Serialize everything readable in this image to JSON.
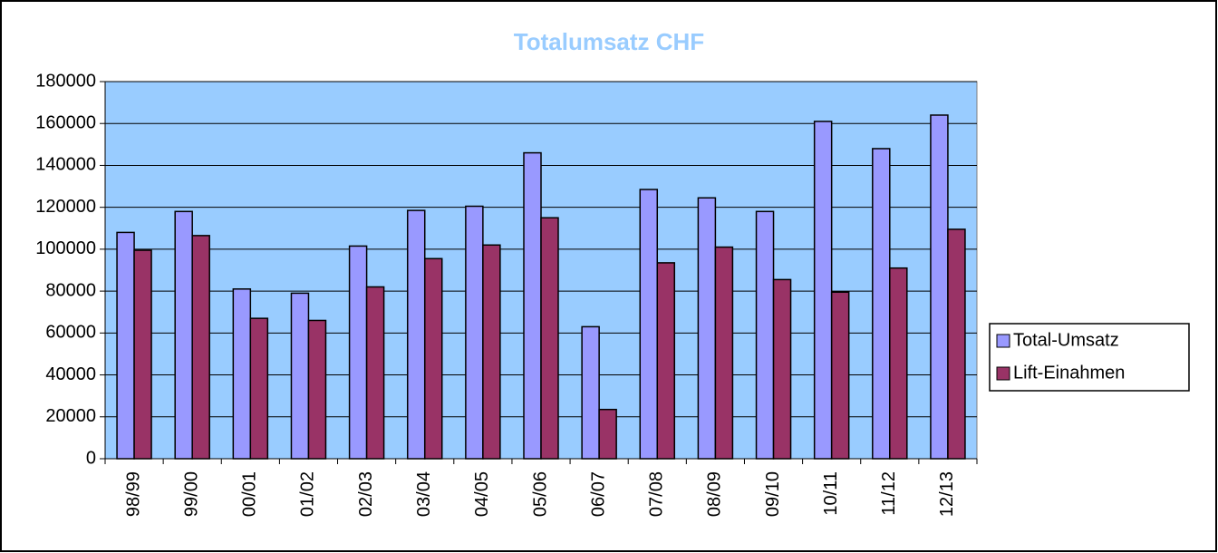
{
  "chart_data": {
    "type": "bar",
    "title": "Totalumsatz CHF",
    "categories": [
      "98/99",
      "99/00",
      "00/01",
      "01/02",
      "02/03",
      "03/04",
      "04/05",
      "05/06",
      "06/07",
      "07/08",
      "08/09",
      "09/10",
      "10/11",
      "11/12",
      "12/13"
    ],
    "series": [
      {
        "name": "Total-Umsatz",
        "color": "#9999ff",
        "values": [
          108000,
          118000,
          81000,
          79000,
          101500,
          118500,
          120500,
          146000,
          63000,
          128500,
          124500,
          118000,
          161000,
          148000,
          164000
        ]
      },
      {
        "name": "Lift-Einahmen",
        "color": "#993366",
        "values": [
          99500,
          106500,
          67000,
          66000,
          82000,
          95500,
          102000,
          115000,
          23500,
          93500,
          101000,
          85500,
          79500,
          91000,
          109500
        ]
      }
    ],
    "ylim": [
      0,
      180000
    ],
    "yticks": [
      0,
      20000,
      40000,
      60000,
      80000,
      100000,
      120000,
      140000,
      160000,
      180000
    ],
    "grid": true,
    "legend": "right",
    "plot_background": "#99ccff"
  }
}
